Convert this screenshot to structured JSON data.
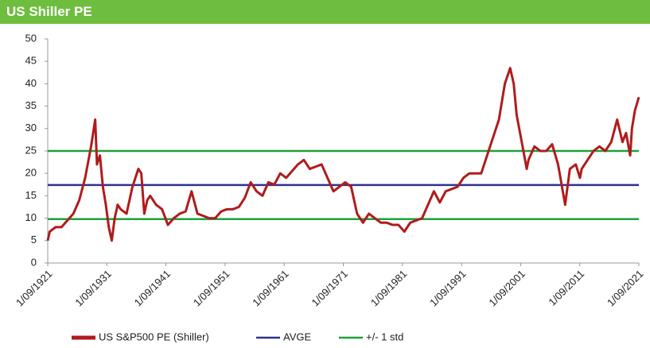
{
  "chart_data": {
    "type": "line",
    "title": "US Shiller PE",
    "x": [
      1921.67,
      1922,
      1923,
      1924,
      1925,
      1926,
      1927,
      1928,
      1929,
      1929.7,
      1930,
      1930.5,
      1931,
      1931.5,
      1932,
      1932.5,
      1933,
      1933.5,
      1934,
      1935,
      1936,
      1937,
      1937.5,
      1938,
      1938.5,
      1939,
      1940,
      1941,
      1942,
      1943,
      1944,
      1945,
      1946,
      1947,
      1948,
      1949,
      1950,
      1951,
      1952,
      1953,
      1954,
      1955,
      1956,
      1957,
      1958,
      1959,
      1960,
      1961,
      1962,
      1963,
      1964,
      1965,
      1966,
      1967,
      1968,
      1969,
      1970,
      1971,
      1972,
      1973,
      1974,
      1975,
      1976,
      1977,
      1978,
      1979,
      1980,
      1981,
      1982,
      1983,
      1984,
      1985,
      1986,
      1987,
      1988,
      1989,
      1990,
      1991,
      1992,
      1993,
      1994,
      1995,
      1996,
      1997,
      1998,
      1999,
      1999.9,
      2000.5,
      2001,
      2002,
      2002.7,
      2003,
      2004,
      2005,
      2006,
      2007,
      2008,
      2009.2,
      2009.8,
      2010,
      2011,
      2011.7,
      2012,
      2013,
      2014,
      2015,
      2016,
      2017,
      2018,
      2018.9,
      2019.5,
      2020.2,
      2020.5,
      2021,
      2021.67
    ],
    "series": [
      {
        "name": "US S&P500 PE (Shiller)",
        "color": "#b01c1c",
        "values": [
          5,
          7,
          8,
          8,
          9.5,
          11,
          14,
          19,
          26,
          32,
          22,
          24,
          17,
          13,
          8,
          5,
          10,
          13,
          12,
          11,
          17,
          21,
          20,
          11,
          14,
          15,
          13,
          12,
          8.5,
          10,
          11,
          11.5,
          16,
          11,
          10.5,
          10,
          10,
          11.5,
          12,
          12,
          12.5,
          14.5,
          18,
          16,
          15,
          18,
          17.5,
          20,
          19,
          20.5,
          22,
          23,
          21,
          21.5,
          22,
          19,
          16,
          17,
          18,
          17,
          11,
          9,
          11,
          10,
          9,
          9,
          8.5,
          8.5,
          7,
          9,
          9.5,
          10,
          13,
          16,
          13.5,
          16,
          16.5,
          17,
          19,
          20,
          20,
          20,
          24,
          28,
          32,
          40,
          43.5,
          40,
          33,
          26,
          21,
          23,
          26,
          25,
          25,
          26.5,
          22,
          13,
          19,
          21,
          22,
          19,
          21,
          23,
          25,
          26,
          25,
          27,
          32,
          27,
          29,
          24,
          30,
          34,
          37
        ]
      }
    ],
    "hlines": [
      {
        "name": "AVGE",
        "color": "#2e3192",
        "value": 17.4
      },
      {
        "name": "+/- 1 std",
        "color": "#1fa03c",
        "values": [
          25,
          9.8
        ]
      }
    ],
    "xlim": [
      1921.67,
      2021.67
    ],
    "xticks": [
      {
        "value": 1921.67,
        "label": "1/09/1921"
      },
      {
        "value": 1931.67,
        "label": "1/09/1931"
      },
      {
        "value": 1941.67,
        "label": "1/09/1941"
      },
      {
        "value": 1951.67,
        "label": "1/09/1951"
      },
      {
        "value": 1961.67,
        "label": "1/09/1961"
      },
      {
        "value": 1971.67,
        "label": "1/09/1971"
      },
      {
        "value": 1981.67,
        "label": "1/09/1981"
      },
      {
        "value": 1991.67,
        "label": "1/09/1991"
      },
      {
        "value": 2001.67,
        "label": "1/09/2001"
      },
      {
        "value": 2011.67,
        "label": "1/09/2011"
      },
      {
        "value": 2021.67,
        "label": "1/09/2021"
      }
    ],
    "ylim": [
      0,
      50
    ],
    "yticks": [
      0,
      5,
      10,
      15,
      20,
      25,
      30,
      35,
      40,
      45,
      50
    ],
    "legend": "bottom"
  }
}
